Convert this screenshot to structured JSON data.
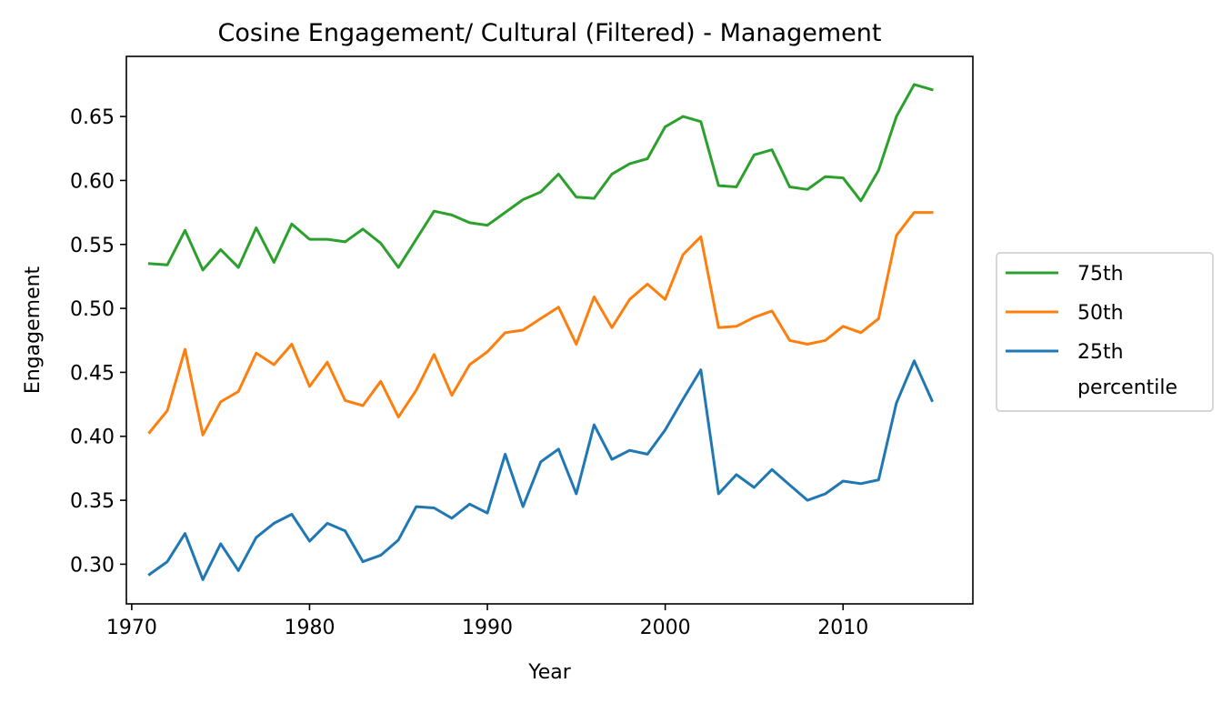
{
  "chart_data": {
    "type": "line",
    "title": "Cosine Engagement/ Cultural (Filtered) - Management",
    "xlabel": "Year",
    "ylabel": "Engagement",
    "xlim": [
      1969.7,
      2017.3
    ],
    "ylim": [
      0.269,
      0.697
    ],
    "xticks": [
      1970,
      1980,
      1990,
      2000,
      2010
    ],
    "yticks": [
      0.3,
      0.35,
      0.4,
      0.45,
      0.5,
      0.55,
      0.6,
      0.65
    ],
    "legend_position": "center-right outside",
    "legend_extra": "percentile",
    "x": [
      1971,
      1972,
      1973,
      1974,
      1975,
      1976,
      1977,
      1978,
      1979,
      1980,
      1981,
      1982,
      1983,
      1984,
      1985,
      1986,
      1987,
      1988,
      1989,
      1990,
      1991,
      1992,
      1993,
      1994,
      1995,
      1996,
      1997,
      1998,
      1999,
      2000,
      2001,
      2002,
      2003,
      2004,
      2005,
      2006,
      2007,
      2008,
      2009,
      2010,
      2011,
      2012,
      2013,
      2014,
      2015
    ],
    "series": [
      {
        "name": "75th",
        "color": "#2ca02c",
        "values": [
          0.535,
          0.534,
          0.561,
          0.53,
          0.546,
          0.532,
          0.563,
          0.536,
          0.566,
          0.554,
          0.554,
          0.552,
          0.562,
          0.551,
          0.532,
          0.554,
          0.576,
          0.573,
          0.567,
          0.565,
          0.575,
          0.585,
          0.591,
          0.605,
          0.587,
          0.586,
          0.605,
          0.613,
          0.617,
          0.642,
          0.65,
          0.646,
          0.596,
          0.595,
          0.62,
          0.624,
          0.595,
          0.593,
          0.603,
          0.602,
          0.584,
          0.608,
          0.65,
          0.675,
          0.671
        ]
      },
      {
        "name": "50th",
        "color": "#ff7f0e",
        "values": [
          0.403,
          0.42,
          0.468,
          0.401,
          0.427,
          0.435,
          0.465,
          0.456,
          0.472,
          0.439,
          0.458,
          0.428,
          0.424,
          0.443,
          0.415,
          0.436,
          0.464,
          0.432,
          0.456,
          0.466,
          0.481,
          0.483,
          0.492,
          0.501,
          0.472,
          0.509,
          0.485,
          0.507,
          0.519,
          0.507,
          0.542,
          0.556,
          0.485,
          0.486,
          0.493,
          0.498,
          0.475,
          0.472,
          0.475,
          0.486,
          0.481,
          0.492,
          0.557,
          0.575,
          0.575
        ]
      },
      {
        "name": "25th",
        "color": "#1f77b4",
        "values": [
          0.292,
          0.302,
          0.324,
          0.288,
          0.316,
          0.295,
          0.321,
          0.332,
          0.339,
          0.318,
          0.332,
          0.326,
          0.302,
          0.307,
          0.319,
          0.345,
          0.344,
          0.336,
          0.347,
          0.34,
          0.386,
          0.345,
          0.38,
          0.39,
          0.355,
          0.409,
          0.382,
          0.389,
          0.386,
          0.405,
          0.429,
          0.452,
          0.355,
          0.37,
          0.36,
          0.374,
          0.362,
          0.35,
          0.355,
          0.365,
          0.363,
          0.366,
          0.426,
          0.459,
          0.428
        ]
      }
    ]
  }
}
